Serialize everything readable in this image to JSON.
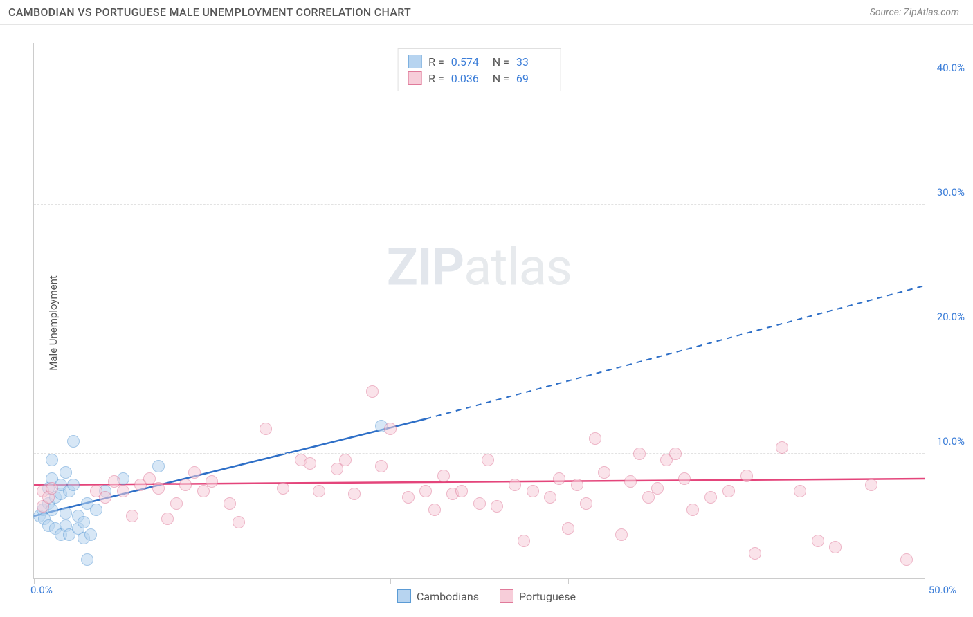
{
  "title": "CAMBODIAN VS PORTUGUESE MALE UNEMPLOYMENT CORRELATION CHART",
  "source_label": "Source: ZipAtlas.com",
  "y_axis_label": "Male Unemployment",
  "watermark_bold": "ZIP",
  "watermark_light": "atlas",
  "chart": {
    "type": "scatter",
    "background_color": "#ffffff",
    "grid_color": "#e2e2e2",
    "axis_color": "#cccccc",
    "tick_label_color": "#3b7dd8",
    "tick_fontsize": 15,
    "xlim": [
      0,
      50
    ],
    "ylim": [
      0,
      43
    ],
    "x_ticks": [
      0,
      10,
      20,
      30,
      40,
      50
    ],
    "x_tick_labels": [
      "0.0%",
      "",
      "",
      "",
      "",
      "50.0%"
    ],
    "y_ticks": [
      10,
      20,
      30,
      40
    ],
    "y_tick_labels": [
      "10.0%",
      "20.0%",
      "30.0%",
      "40.0%"
    ],
    "marker_radius": 9,
    "marker_opacity": 0.55,
    "series": [
      {
        "name": "Cambodians",
        "color_fill": "#b7d4f0",
        "color_stroke": "#5b9bd5",
        "line_color": "#2e6fc7",
        "points": [
          [
            0.3,
            5.0
          ],
          [
            0.5,
            5.5
          ],
          [
            0.6,
            4.8
          ],
          [
            0.8,
            6.0
          ],
          [
            0.8,
            7.2
          ],
          [
            0.8,
            4.2
          ],
          [
            1.0,
            5.5
          ],
          [
            1.0,
            8.0
          ],
          [
            1.0,
            9.5
          ],
          [
            1.2,
            6.5
          ],
          [
            1.2,
            4.0
          ],
          [
            1.5,
            6.8
          ],
          [
            1.5,
            7.5
          ],
          [
            1.5,
            3.5
          ],
          [
            1.8,
            5.2
          ],
          [
            1.8,
            4.2
          ],
          [
            1.8,
            8.5
          ],
          [
            2.0,
            7.0
          ],
          [
            2.0,
            3.5
          ],
          [
            2.2,
            7.5
          ],
          [
            2.2,
            11.0
          ],
          [
            2.5,
            5.0
          ],
          [
            2.5,
            4.0
          ],
          [
            2.8,
            4.5
          ],
          [
            2.8,
            3.2
          ],
          [
            3.0,
            6.0
          ],
          [
            3.2,
            3.5
          ],
          [
            3.5,
            5.5
          ],
          [
            4.0,
            7.0
          ],
          [
            5.0,
            8.0
          ],
          [
            7.0,
            9.0
          ],
          [
            3.0,
            1.5
          ],
          [
            19.5,
            12.2
          ]
        ],
        "trend": {
          "x1": 0,
          "y1": 5.0,
          "x2_solid": 22,
          "y2_solid": 12.8,
          "x2_dash": 50,
          "y2_dash": 23.5
        }
      },
      {
        "name": "Portuguese",
        "color_fill": "#f7cdd9",
        "color_stroke": "#e07a9a",
        "line_color": "#e4457b",
        "points": [
          [
            0.5,
            7.0
          ],
          [
            0.5,
            5.8
          ],
          [
            0.8,
            6.5
          ],
          [
            1.0,
            7.2
          ],
          [
            3.5,
            7.0
          ],
          [
            4.0,
            6.5
          ],
          [
            4.5,
            7.8
          ],
          [
            5.0,
            7.0
          ],
          [
            5.5,
            5.0
          ],
          [
            6.0,
            7.5
          ],
          [
            6.5,
            8.0
          ],
          [
            7.0,
            7.2
          ],
          [
            7.5,
            4.8
          ],
          [
            8.0,
            6.0
          ],
          [
            8.5,
            7.5
          ],
          [
            9.0,
            8.5
          ],
          [
            9.5,
            7.0
          ],
          [
            10.0,
            7.8
          ],
          [
            11.0,
            6.0
          ],
          [
            11.5,
            4.5
          ],
          [
            13.0,
            12.0
          ],
          [
            14.0,
            7.2
          ],
          [
            15.0,
            9.5
          ],
          [
            15.5,
            9.2
          ],
          [
            16.0,
            7.0
          ],
          [
            17.0,
            8.8
          ],
          [
            17.5,
            9.5
          ],
          [
            18.0,
            6.8
          ],
          [
            19.0,
            15.0
          ],
          [
            19.5,
            9.0
          ],
          [
            20.0,
            12.0
          ],
          [
            21.0,
            6.5
          ],
          [
            22.0,
            7.0
          ],
          [
            22.5,
            5.5
          ],
          [
            23.0,
            8.2
          ],
          [
            23.5,
            6.8
          ],
          [
            24.0,
            7.0
          ],
          [
            25.0,
            6.0
          ],
          [
            25.5,
            9.5
          ],
          [
            26.0,
            5.8
          ],
          [
            27.0,
            7.5
          ],
          [
            27.5,
            3.0
          ],
          [
            28.0,
            7.0
          ],
          [
            29.0,
            6.5
          ],
          [
            29.5,
            8.0
          ],
          [
            30.0,
            4.0
          ],
          [
            30.5,
            7.5
          ],
          [
            31.0,
            6.0
          ],
          [
            31.5,
            11.2
          ],
          [
            32.0,
            8.5
          ],
          [
            33.0,
            3.5
          ],
          [
            33.5,
            7.8
          ],
          [
            34.0,
            10.0
          ],
          [
            34.5,
            6.5
          ],
          [
            35.0,
            7.2
          ],
          [
            35.5,
            9.5
          ],
          [
            36.0,
            10.0
          ],
          [
            36.5,
            8.0
          ],
          [
            37.0,
            5.5
          ],
          [
            38.0,
            6.5
          ],
          [
            39.0,
            7.0
          ],
          [
            40.0,
            8.2
          ],
          [
            40.5,
            2.0
          ],
          [
            42.0,
            10.5
          ],
          [
            43.0,
            7.0
          ],
          [
            44.0,
            3.0
          ],
          [
            45.0,
            2.5
          ],
          [
            47.0,
            7.5
          ],
          [
            49.0,
            1.5
          ]
        ],
        "trend": {
          "x1": 0,
          "y1": 7.5,
          "x2_solid": 50,
          "y2_solid": 8.0,
          "x2_dash": 50,
          "y2_dash": 8.0
        }
      }
    ]
  },
  "legend_top": {
    "rows": [
      {
        "swatch_fill": "#b7d4f0",
        "swatch_stroke": "#5b9bd5",
        "r_label": "R =",
        "r_value": "0.574",
        "n_label": "N =",
        "n_value": "33"
      },
      {
        "swatch_fill": "#f7cdd9",
        "swatch_stroke": "#e07a9a",
        "r_label": "R =",
        "r_value": "0.036",
        "n_label": "N =",
        "n_value": "69"
      }
    ]
  },
  "legend_bottom": {
    "items": [
      {
        "swatch_fill": "#b7d4f0",
        "swatch_stroke": "#5b9bd5",
        "label": "Cambodians"
      },
      {
        "swatch_fill": "#f7cdd9",
        "swatch_stroke": "#e07a9a",
        "label": "Portuguese"
      }
    ]
  }
}
